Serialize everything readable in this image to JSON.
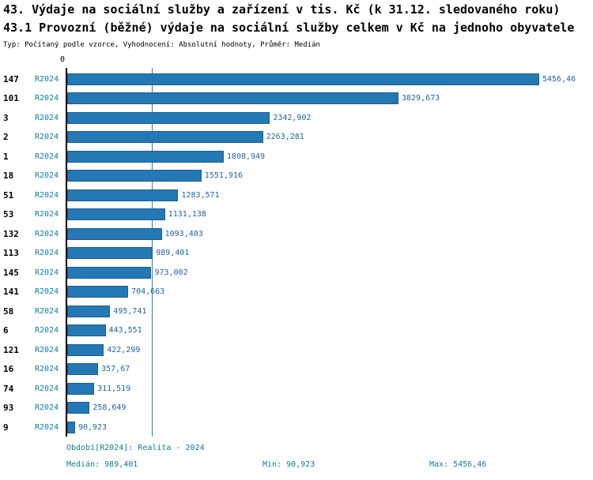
{
  "title_line1": "43. Výdaje na sociální služby a zařízení v tis. Kč (k 31.12. sledovaného roku)",
  "title_line2": "43.1 Provozní (běžné) výdaje na sociální služby celkem v Kč na jednoho obyvatele",
  "subtitle": "Typ: Počítaný podle vzorce, Vyhodnocení: Absolutní hodnoty, Průměr: Medián",
  "chart_data": {
    "type": "bar",
    "orientation": "horizontal",
    "title": "43.1 Provozní (běžné) výdaje na sociální služby celkem v Kč na jednoho obyvatele",
    "series_label": "R2024",
    "axis_origin_label": "0",
    "categories": [
      "147",
      "101",
      "3",
      "2",
      "1",
      "18",
      "51",
      "53",
      "132",
      "113",
      "145",
      "141",
      "58",
      "6",
      "121",
      "16",
      "74",
      "93",
      "9"
    ],
    "values": [
      5456.46,
      3829.673,
      2342.902,
      2263.281,
      1808.949,
      1551.916,
      1283.571,
      1131.138,
      1093.403,
      989.401,
      973.002,
      704.663,
      495.741,
      443.551,
      422.299,
      357.67,
      311.519,
      258.649,
      90.923
    ],
    "value_labels": [
      "5456,46",
      "3829,673",
      "2342,902",
      "2263,281",
      "1808,949",
      "1551,916",
      "1283,571",
      "1131,138",
      "1093,403",
      "989,401",
      "973,002",
      "704,663",
      "495,741",
      "443,551",
      "422,299",
      "357,67",
      "311,519",
      "258,649",
      "90,923"
    ],
    "median_value": 989.401,
    "xlim": [
      0,
      5456.46
    ],
    "grid": false,
    "legend_position": "none",
    "colors": {
      "bar": "#2478b4",
      "bar_border": "#1b5e8e",
      "median_line": "#2e7fb0",
      "series_label_text": "#0c7fa6",
      "value_label_text": "#1d63a8",
      "footer_text": "#0b8190"
    }
  },
  "footer": {
    "period": "Období[R2024]: Realita - 2024",
    "median": "Medián: 989,401",
    "min": "Min: 90,923",
    "max": "Max: 5456,46"
  }
}
